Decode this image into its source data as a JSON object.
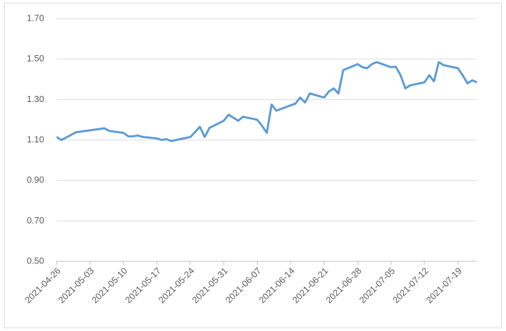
{
  "chart_data": {
    "type": "line",
    "x": [
      "2021-04-26",
      "2021-04-27",
      "2021-04-28",
      "2021-04-29",
      "2021-04-30",
      "2021-05-06",
      "2021-05-07",
      "2021-05-10",
      "2021-05-11",
      "2021-05-12",
      "2021-05-13",
      "2021-05-14",
      "2021-05-17",
      "2021-05-18",
      "2021-05-19",
      "2021-05-20",
      "2021-05-21",
      "2021-05-24",
      "2021-05-25",
      "2021-05-26",
      "2021-05-27",
      "2021-05-28",
      "2021-05-31",
      "2021-06-01",
      "2021-06-02",
      "2021-06-03",
      "2021-06-04",
      "2021-06-07",
      "2021-06-08",
      "2021-06-09",
      "2021-06-10",
      "2021-06-11",
      "2021-06-15",
      "2021-06-16",
      "2021-06-17",
      "2021-06-18",
      "2021-06-21",
      "2021-06-22",
      "2021-06-23",
      "2021-06-24",
      "2021-06-25",
      "2021-06-28",
      "2021-06-29",
      "2021-06-30",
      "2021-07-01",
      "2021-07-02",
      "2021-07-05",
      "2021-07-06",
      "2021-07-07",
      "2021-07-08",
      "2021-07-09",
      "2021-07-12",
      "2021-07-13",
      "2021-07-14",
      "2021-07-15",
      "2021-07-16",
      "2021-07-19",
      "2021-07-20",
      "2021-07-21",
      "2021-07-22",
      "2021-07-23"
    ],
    "series": [
      {
        "color": "#5b9bd5",
        "values": [
          1.115,
          1.1,
          1.112,
          1.125,
          1.138,
          1.158,
          1.145,
          1.135,
          1.118,
          1.118,
          1.122,
          1.115,
          1.108,
          1.1,
          1.104,
          1.095,
          1.1,
          1.115,
          1.14,
          1.165,
          1.115,
          1.16,
          1.195,
          1.225,
          1.21,
          1.195,
          1.215,
          1.2,
          1.17,
          1.135,
          1.275,
          1.245,
          1.28,
          1.31,
          1.285,
          1.33,
          1.31,
          1.34,
          1.355,
          1.33,
          1.445,
          1.475,
          1.46,
          1.455,
          1.475,
          1.485,
          1.46,
          1.462,
          1.42,
          1.355,
          1.37,
          1.385,
          1.42,
          1.39,
          1.485,
          1.47,
          1.455,
          1.42,
          1.38,
          1.395,
          1.385
        ]
      }
    ],
    "xlim": [
      "2021-04-26",
      "2021-07-23"
    ],
    "xticks": [
      "2021-04-26",
      "2021-05-03",
      "2021-05-10",
      "2021-05-17",
      "2021-05-24",
      "2021-05-31",
      "2021-06-07",
      "2021-06-14",
      "2021-06-21",
      "2021-06-28",
      "2021-07-05",
      "2021-07-12",
      "2021-07-19"
    ],
    "ylim": [
      0.5,
      1.7
    ],
    "yticks": [
      {
        "value": 0.5,
        "label": "0.50"
      },
      {
        "value": 0.7,
        "label": "0.70"
      },
      {
        "value": 0.9,
        "label": "0.90"
      },
      {
        "value": 1.1,
        "label": "1.10"
      },
      {
        "value": 1.3,
        "label": "1.30"
      },
      {
        "value": 1.5,
        "label": "1.50"
      },
      {
        "value": 1.7,
        "label": "1.70"
      }
    ],
    "grid": true
  }
}
